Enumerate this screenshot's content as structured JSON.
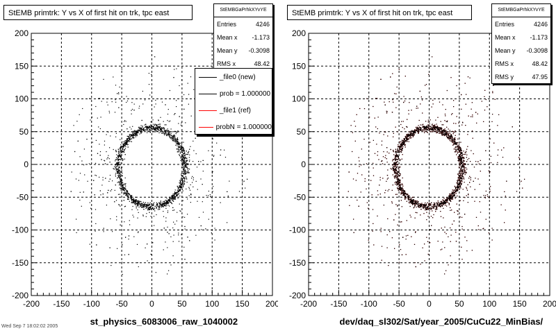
{
  "panels": [
    {
      "title": "StEMB primtrk: Y vs X of first hit on trk, tpc east",
      "stats": {
        "name": "StEMBGaPrhkXYvYE",
        "entries_label": "Entries",
        "entries": "4246",
        "meanx_label": "Mean x",
        "meanx": "-1.173",
        "meany_label": "Mean y",
        "meany": "-0.3098",
        "rmsx_label": "RMS x",
        "rmsx": "48.42"
      },
      "xtitle": "st_physics_6083006_raw_1040002",
      "legend": [
        {
          "label": "_file0 (new)",
          "color": "#000000"
        },
        {
          "label": "prob = 1.000000",
          "color": "#000000"
        },
        {
          "label": "_file1 (ref)",
          "color": "#ff0000"
        },
        {
          "label": "probN = 1.000000",
          "color": "#ff0000"
        }
      ]
    },
    {
      "title": "StEMB primtrk: Y vs X of first hit on trk, tpc east",
      "stats": {
        "name": "StEMBGaPrhkXYvYE",
        "entries_label": "Entries",
        "entries": "4246",
        "meanx_label": "Mean x",
        "meanx": "-1.173",
        "meany_label": "Mean y",
        "meany": "-0.3098",
        "rmsx_label": "RMS x",
        "rmsx": "48.42",
        "rmsy_label": "RMS y",
        "rmsy": "47.95"
      },
      "xtitle": "dev/daq_sl302/Sat/year_2005/CuCu22_MinBias/"
    }
  ],
  "footer": "Wed Sep 7 18:02:02 2005",
  "chart_data": [
    {
      "type": "scatter",
      "title": "StEMB primtrk: Y vs X of first hit on trk, tpc east",
      "xlabel": "st_physics_6083006_raw_1040002",
      "ylabel": "",
      "xlim": [
        -200,
        200
      ],
      "ylim": [
        -200,
        200
      ],
      "xticks": [
        -200,
        -150,
        -100,
        -50,
        0,
        50,
        100,
        150,
        200
      ],
      "yticks": [
        -200,
        -150,
        -100,
        -50,
        0,
        50,
        100,
        150,
        200
      ],
      "grid": true,
      "series": [
        {
          "name": "_file0 (new)",
          "color": "#000000",
          "ring_center": [
            -1,
            -4
          ],
          "ring_radius_x": 55,
          "ring_radius_y": 60,
          "entries": 4246
        }
      ]
    },
    {
      "type": "scatter",
      "title": "StEMB primtrk: Y vs X of first hit on trk, tpc east",
      "xlabel": "dev/daq_sl302/Sat/year_2005/CuCu22_MinBias/",
      "ylabel": "",
      "xlim": [
        -200,
        200
      ],
      "ylim": [
        -200,
        200
      ],
      "xticks": [
        -200,
        -150,
        -100,
        -50,
        0,
        50,
        100,
        150,
        200
      ],
      "yticks": [
        -200,
        -150,
        -100,
        -50,
        0,
        50,
        100,
        150,
        200
      ],
      "grid": true,
      "series": [
        {
          "name": "_file1 (ref)",
          "color": "#ff0000",
          "ring_center": [
            -1,
            -4
          ],
          "ring_radius_x": 55,
          "ring_radius_y": 60,
          "entries": 4246
        },
        {
          "name": "_file0 (new)",
          "color": "#000000",
          "ring_center": [
            -1,
            -4
          ],
          "ring_radius_x": 55,
          "ring_radius_y": 60,
          "entries": 4246
        }
      ]
    }
  ]
}
